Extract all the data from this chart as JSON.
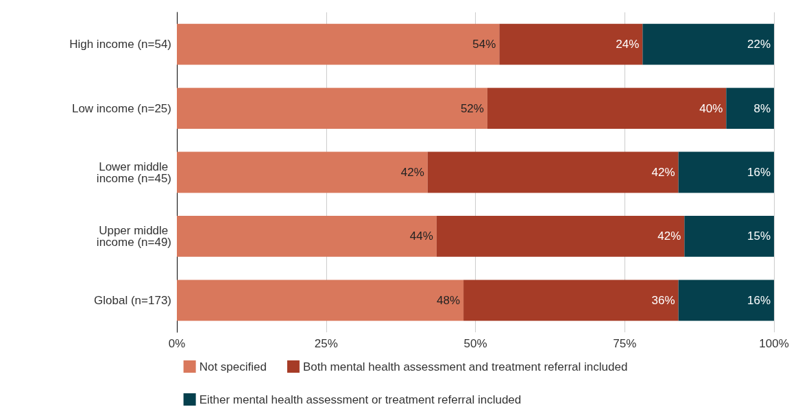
{
  "chart_data": {
    "type": "bar",
    "orientation": "horizontal",
    "stacked": true,
    "categories": [
      "High income (n=54)",
      "Low income (n=25)",
      "Lower middle income (n=45)",
      "Upper middle income (n=49)",
      "Global (n=173)"
    ],
    "series": [
      {
        "name": "Not specified",
        "color": "#d9785c",
        "values": [
          54,
          52,
          42,
          43.5,
          48
        ],
        "value_labels": [
          "54%",
          "52%",
          "42%",
          "44%",
          "48%"
        ]
      },
      {
        "name": "Both mental health assessment and treatment referral included",
        "color": "#a63c27",
        "values": [
          24,
          40,
          42,
          41.5,
          36
        ],
        "value_labels": [
          "24%",
          "40%",
          "42%",
          "42%",
          "36%"
        ]
      },
      {
        "name": "Either mental health assessment or treatment referral included",
        "color": "#05404d",
        "values": [
          22,
          8,
          16,
          15,
          16
        ],
        "value_labels": [
          "22%",
          "8%",
          "16%",
          "15%",
          "16%"
        ]
      }
    ],
    "xlim": [
      0,
      100
    ],
    "xticks": [
      {
        "value": 0,
        "label": "0%"
      },
      {
        "value": 25,
        "label": "25%"
      },
      {
        "value": 50,
        "label": "50%"
      },
      {
        "value": 75,
        "label": "75%"
      },
      {
        "value": 100,
        "label": "100%"
      }
    ],
    "grid": "x",
    "legend": "bottom"
  }
}
